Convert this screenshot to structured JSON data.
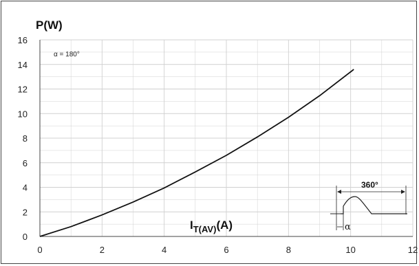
{
  "chart_data": {
    "type": "line",
    "ylabel": "P(W)",
    "xlabel_main": "I",
    "xlabel_sub": "T(AV)",
    "xlabel_unit": "(A)",
    "annotation": "α = 180°",
    "inset": {
      "period_label": "360°",
      "angle_label": "α"
    },
    "xlim": [
      0,
      12
    ],
    "ylim": [
      0,
      16
    ],
    "xticks": [
      0,
      2,
      4,
      6,
      8,
      10,
      12
    ],
    "yticks": [
      0,
      2,
      4,
      6,
      8,
      10,
      12,
      14,
      16
    ],
    "grid": true,
    "series": [
      {
        "x": [
          0,
          1,
          2,
          3,
          4,
          5,
          6,
          7,
          8,
          9,
          10,
          10.1
        ],
        "y": [
          0,
          0.8,
          1.75,
          2.8,
          3.95,
          5.25,
          6.6,
          8.1,
          9.7,
          11.45,
          13.4,
          13.6
        ]
      }
    ],
    "colors": {
      "line": "#111111",
      "grid": "#d0d0d0",
      "axis": "#444444"
    }
  }
}
